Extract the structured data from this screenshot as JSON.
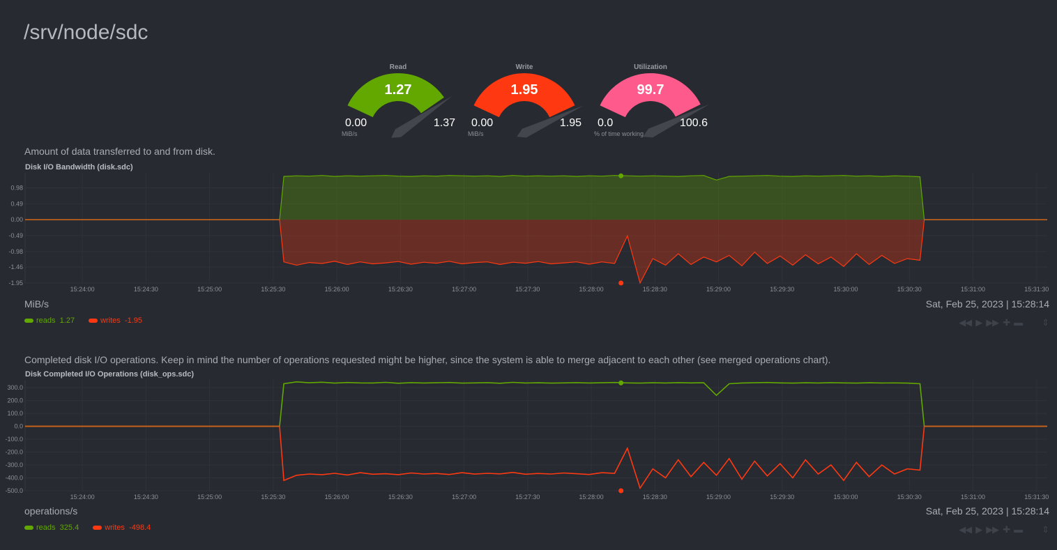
{
  "page": {
    "title": "/srv/node/sdc"
  },
  "gauges": [
    {
      "label": "Read",
      "value": "1.27",
      "min": "0.00",
      "max": "1.37",
      "unit": "MiB/s",
      "fraction": 0.927,
      "color": "#62a800"
    },
    {
      "label": "Write",
      "value": "1.95",
      "min": "0.00",
      "max": "1.95",
      "unit": "MiB/s",
      "fraction": 1.0,
      "color": "#fe3912"
    },
    {
      "label": "Utilization",
      "value": "99.7",
      "min": "0.0",
      "max": "100.6",
      "unit": "% of time working",
      "fraction": 0.991,
      "color": "#ff5a8c"
    }
  ],
  "charts": [
    {
      "description": "Amount of data transferred to and from disk.",
      "units": "MiB/s",
      "date": "Sat, Feb 25, 2023 | 15:28:14",
      "legend": [
        {
          "name": "reads",
          "value": "1.27",
          "color": "#62a800"
        },
        {
          "name": "writes",
          "value": "-1.95",
          "color": "#fe3912"
        }
      ]
    },
    {
      "description": "Completed disk I/O operations. Keep in mind the number of operations requested might be higher, since the system is able to merge adjacent to each other (see merged operations chart).",
      "units": "operations/s",
      "date": "Sat, Feb 25, 2023 | 15:28:14",
      "legend": [
        {
          "name": "reads",
          "value": "325.4",
          "color": "#62a800"
        },
        {
          "name": "writes",
          "value": "-498.4",
          "color": "#fe3912"
        }
      ]
    }
  ],
  "controls": [
    "rewind",
    "play",
    "forward",
    "zoom-in",
    "zoom-out",
    "resize"
  ],
  "chart_data": [
    {
      "type": "area",
      "title": "Disk I/O Bandwidth (disk.sdc)",
      "ylabel": "MiB/s",
      "ylim": [
        -1.95,
        1.44
      ],
      "yticks": [
        "0.98",
        "0.49",
        "0.00",
        "-0.49",
        "-0.98",
        "-1.46",
        "-1.95"
      ],
      "xticks": [
        "15:24:00",
        "15:24:30",
        "15:25:00",
        "15:25:30",
        "15:26:00",
        "15:26:30",
        "15:27:00",
        "15:27:30",
        "15:28:00",
        "15:28:30",
        "15:29:00",
        "15:29:30",
        "15:30:00",
        "15:30:30",
        "15:31:00",
        "15:31:30"
      ],
      "x_range": [
        "15:23:33",
        "15:31:35"
      ],
      "data_start": "15:25:35",
      "data_step_seconds": 6,
      "cursor": "15:28:14",
      "series": [
        {
          "name": "reads",
          "color": "#62a800",
          "values": [
            1.33,
            1.35,
            1.34,
            1.36,
            1.33,
            1.35,
            1.34,
            1.35,
            1.36,
            1.34,
            1.33,
            1.35,
            1.34,
            1.36,
            1.35,
            1.34,
            1.35,
            1.33,
            1.36,
            1.34,
            1.35,
            1.34,
            1.35,
            1.33,
            1.35,
            1.34,
            1.36,
            1.35,
            1.34,
            1.35,
            1.34,
            1.33,
            1.35,
            1.36,
            1.22,
            1.33,
            1.34,
            1.35,
            1.36,
            1.34,
            1.33,
            1.35,
            1.34,
            1.35,
            1.36,
            1.34,
            1.35,
            1.33,
            1.35,
            1.34,
            1.32
          ]
        },
        {
          "name": "writes",
          "color": "#fe3912",
          "values": [
            -1.3,
            -1.4,
            -1.32,
            -1.35,
            -1.28,
            -1.38,
            -1.3,
            -1.36,
            -1.33,
            -1.29,
            -1.37,
            -1.31,
            -1.34,
            -1.28,
            -1.36,
            -1.32,
            -1.3,
            -1.38,
            -1.31,
            -1.34,
            -1.29,
            -1.36,
            -1.33,
            -1.3,
            -1.37,
            -1.3,
            -1.35,
            -0.5,
            -1.95,
            -1.2,
            -1.4,
            -1.05,
            -1.38,
            -1.15,
            -1.3,
            -1.1,
            -1.42,
            -1.0,
            -1.35,
            -1.12,
            -1.4,
            -1.08,
            -1.36,
            -1.15,
            -1.44,
            -1.05,
            -1.38,
            -1.1,
            -1.35,
            -1.2,
            -1.25
          ]
        }
      ]
    },
    {
      "type": "line",
      "title": "Disk Completed I/O Operations (disk_ops.sdc)",
      "ylabel": "operations/s",
      "ylim": [
        -500,
        360
      ],
      "yticks": [
        "300.0",
        "200.0",
        "100.0",
        "0.0",
        "-100.0",
        "-200.0",
        "-300.0",
        "-400.0",
        "-500.0"
      ],
      "xticks": [
        "15:24:00",
        "15:24:30",
        "15:25:00",
        "15:25:30",
        "15:26:00",
        "15:26:30",
        "15:27:00",
        "15:27:30",
        "15:28:00",
        "15:28:30",
        "15:29:00",
        "15:29:30",
        "15:30:00",
        "15:30:30",
        "15:31:00",
        "15:31:30"
      ],
      "x_range": [
        "15:23:33",
        "15:31:35"
      ],
      "data_start": "15:25:35",
      "data_step_seconds": 6,
      "cursor": "15:28:14",
      "series": [
        {
          "name": "reads",
          "color": "#62a800",
          "values": [
            330,
            345,
            338,
            342,
            335,
            340,
            337,
            336,
            341,
            334,
            339,
            336,
            338,
            340,
            335,
            337,
            339,
            334,
            341,
            336,
            338,
            335,
            337,
            339,
            336,
            338,
            340,
            337,
            335,
            338,
            336,
            339,
            337,
            338,
            240,
            330,
            336,
            338,
            340,
            337,
            335,
            338,
            336,
            339,
            337,
            335,
            338,
            336,
            337,
            335,
            330
          ]
        },
        {
          "name": "writes",
          "color": "#fe3912",
          "values": [
            -420,
            -380,
            -370,
            -375,
            -365,
            -378,
            -360,
            -372,
            -368,
            -375,
            -362,
            -370,
            -366,
            -374,
            -360,
            -371,
            -365,
            -369,
            -358,
            -372,
            -366,
            -370,
            -362,
            -368,
            -374,
            -360,
            -365,
            -170,
            -480,
            -330,
            -400,
            -260,
            -390,
            -280,
            -380,
            -250,
            -410,
            -270,
            -385,
            -290,
            -400,
            -260,
            -370,
            -300,
            -420,
            -280,
            -390,
            -300,
            -370,
            -330,
            -340
          ]
        }
      ]
    }
  ]
}
